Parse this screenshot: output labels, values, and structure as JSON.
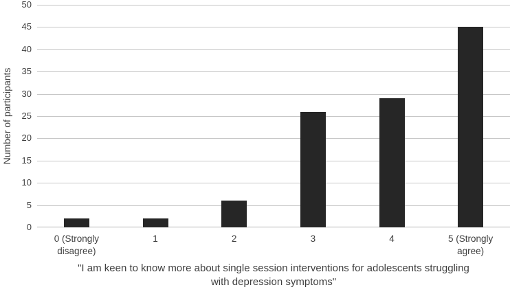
{
  "chart_data": {
    "type": "bar",
    "categories": [
      "0 (Strongly disagree)",
      "1",
      "2",
      "3",
      "4",
      "5 (Strongly agree)"
    ],
    "values": [
      2,
      2,
      6,
      26,
      29,
      45
    ],
    "title": "",
    "xlabel": "\"I am keen to know more about single session interventions for adolescents struggling with depression symptoms\"",
    "ylabel": "Number of participants",
    "ylim": [
      0,
      50
    ],
    "ytick_step": 5,
    "yticks": [
      0,
      5,
      10,
      15,
      20,
      25,
      30,
      35,
      40,
      45,
      50
    ],
    "grid": true,
    "legend": "none",
    "colors": {
      "bar": "#262626",
      "gridline": "#c6c6c6",
      "axis_line": "#b3b3b3",
      "text": "#3f3f3f"
    }
  }
}
